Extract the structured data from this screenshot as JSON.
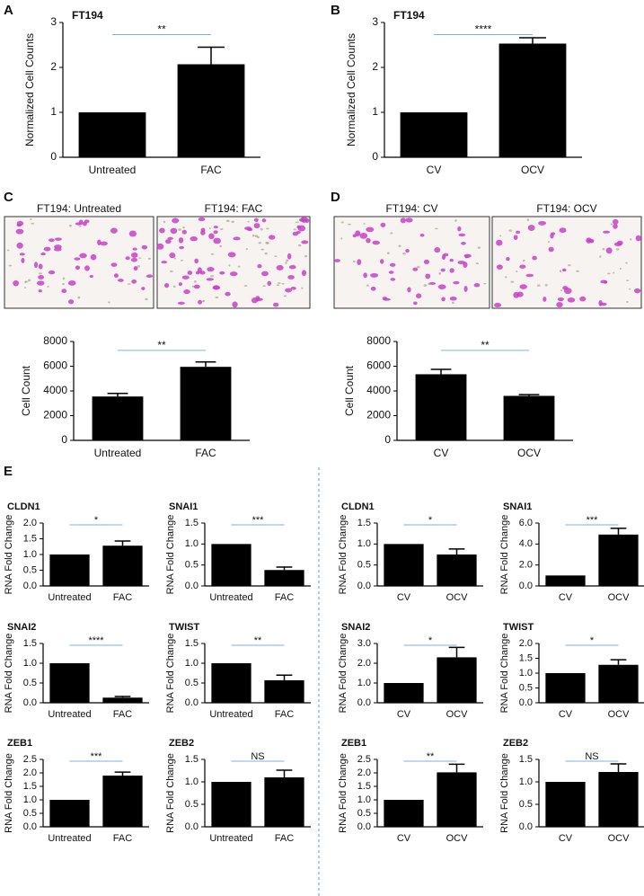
{
  "panel_labels": [
    "A",
    "B",
    "C",
    "D",
    "E"
  ],
  "micrographs": [
    "FT194: Untreated",
    "FT194: FAC",
    "FT194: CV",
    "FT194: OCV"
  ],
  "chart_data": [
    {
      "type": "bar",
      "title": "FT194",
      "ylabel": "Normalized Cell Counts",
      "categories": [
        "Untreated",
        "FAC"
      ],
      "values": [
        1,
        2.07
      ],
      "errors": [
        null,
        0.38
      ],
      "color": "#000000",
      "ylim": [
        0,
        3
      ],
      "yticks": [
        0,
        1,
        2,
        3
      ],
      "significance": "**"
    },
    {
      "type": "bar",
      "title": "FT194",
      "ylabel": "Normalized Cell Counts",
      "categories": [
        "CV",
        "OCV"
      ],
      "values": [
        1,
        2.53
      ],
      "errors": [
        null,
        0.13
      ],
      "color": "#000000",
      "ylim": [
        0,
        3
      ],
      "yticks": [
        0,
        1,
        2,
        3
      ],
      "significance": "****"
    },
    {
      "type": "bar",
      "ylabel": "Cell Count",
      "categories": [
        "Untreated",
        "FAC"
      ],
      "values": [
        3550,
        5950
      ],
      "errors": [
        250,
        400
      ],
      "color": "#000000",
      "ylim": [
        0,
        8000
      ],
      "yticks": [
        0,
        2000,
        4000,
        6000,
        8000
      ],
      "significance": "**"
    },
    {
      "type": "bar",
      "ylabel": "Cell Count",
      "categories": [
        "CV",
        "OCV"
      ],
      "values": [
        5350,
        3600
      ],
      "errors": [
        400,
        100
      ],
      "color": "#000000",
      "ylim": [
        0,
        8000
      ],
      "yticks": [
        0,
        2000,
        4000,
        6000,
        8000
      ],
      "significance": "**"
    },
    {
      "type": "bar",
      "title": "CLDN1",
      "ylabel": "RNA Fold Change",
      "categories": [
        "Untreated",
        "FAC"
      ],
      "values": [
        1,
        1.28
      ],
      "errors": [
        null,
        0.15
      ],
      "color": "#000000",
      "ylim": [
        0,
        2
      ],
      "yticks": [
        {
          "value": 0,
          "label": "0.0"
        },
        {
          "value": 0.5,
          "label": "0.5"
        },
        {
          "value": 1,
          "label": "1.0"
        },
        {
          "value": 1.5,
          "label": "1.5"
        },
        {
          "value": 2,
          "label": "2.0"
        }
      ],
      "significance": "*"
    },
    {
      "type": "bar",
      "title": "SNAI1",
      "ylabel": "RNA Fold Change",
      "categories": [
        "Untreated",
        "FAC"
      ],
      "values": [
        1,
        0.38
      ],
      "errors": [
        null,
        0.07
      ],
      "color": "#000000",
      "ylim": [
        0,
        1.5
      ],
      "yticks": [
        {
          "value": 0,
          "label": "0.0"
        },
        {
          "value": 0.5,
          "label": "0.5"
        },
        {
          "value": 1,
          "label": "1.0"
        },
        {
          "value": 1.5,
          "label": "1.5"
        }
      ],
      "significance": "***"
    },
    {
      "type": "bar",
      "title": "SNAI2",
      "ylabel": "RNA Fold Change",
      "categories": [
        "Untreated",
        "FAC"
      ],
      "values": [
        1,
        0.13
      ],
      "errors": [
        null,
        0.03
      ],
      "color": "#000000",
      "ylim": [
        0,
        1.5
      ],
      "yticks": [
        {
          "value": 0,
          "label": "0.0"
        },
        {
          "value": 0.5,
          "label": "0.5"
        },
        {
          "value": 1,
          "label": "1.0"
        },
        {
          "value": 1.5,
          "label": "1.5"
        }
      ],
      "significance": "****"
    },
    {
      "type": "bar",
      "title": "TWIST",
      "ylabel": "RNA Fold Change",
      "categories": [
        "Untreated",
        "FAC"
      ],
      "values": [
        1,
        0.57
      ],
      "errors": [
        null,
        0.13
      ],
      "color": "#000000",
      "ylim": [
        0,
        1.5
      ],
      "yticks": [
        {
          "value": 0,
          "label": "0.0"
        },
        {
          "value": 0.5,
          "label": "0.5"
        },
        {
          "value": 1,
          "label": "1.0"
        },
        {
          "value": 1.5,
          "label": "1.5"
        }
      ],
      "significance": "**"
    },
    {
      "type": "bar",
      "title": "ZEB1",
      "ylabel": "RNA Fold Change",
      "categories": [
        "Untreated",
        "FAC"
      ],
      "values": [
        1,
        1.9
      ],
      "errors": [
        null,
        0.13
      ],
      "color": "#000000",
      "ylim": [
        0,
        2.5
      ],
      "yticks": [
        {
          "value": 0,
          "label": "0.0"
        },
        {
          "value": 0.5,
          "label": "0.5"
        },
        {
          "value": 1,
          "label": "1.0"
        },
        {
          "value": 1.5,
          "label": "1.5"
        },
        {
          "value": 2,
          "label": "2.0"
        },
        {
          "value": 2.5,
          "label": "2.5"
        }
      ],
      "significance": "***"
    },
    {
      "type": "bar",
      "title": "ZEB2",
      "ylabel": "RNA Fold Change",
      "categories": [
        "Untreated",
        "FAC"
      ],
      "values": [
        1,
        1.1
      ],
      "errors": [
        null,
        0.16
      ],
      "color": "#000000",
      "ylim": [
        0,
        1.5
      ],
      "yticks": [
        {
          "value": 0,
          "label": "0.0"
        },
        {
          "value": 0.5,
          "label": "0.5"
        },
        {
          "value": 1,
          "label": "1.0"
        },
        {
          "value": 1.5,
          "label": "1.5"
        }
      ],
      "significance": "NS"
    },
    {
      "type": "bar",
      "title": "CLDN1",
      "ylabel": "RNA Fold Change",
      "categories": [
        "CV",
        "OCV"
      ],
      "values": [
        1,
        0.75
      ],
      "errors": [
        null,
        0.13
      ],
      "color": "#000000",
      "ylim": [
        0,
        1.5
      ],
      "yticks": [
        {
          "value": 0,
          "label": "0.0"
        },
        {
          "value": 0.5,
          "label": "0.5"
        },
        {
          "value": 1,
          "label": "1.0"
        },
        {
          "value": 1.5,
          "label": "1.5"
        }
      ],
      "significance": "*"
    },
    {
      "type": "bar",
      "title": "SNAI1",
      "ylabel": "RNA Fold Change",
      "categories": [
        "CV",
        "OCV"
      ],
      "values": [
        1,
        4.9
      ],
      "errors": [
        null,
        0.6
      ],
      "color": "#000000",
      "ylim": [
        0,
        6
      ],
      "yticks": [
        {
          "value": 0,
          "label": "0.0"
        },
        {
          "value": 2,
          "label": "2.0"
        },
        {
          "value": 4,
          "label": "4.0"
        },
        {
          "value": 6,
          "label": "6.0"
        }
      ],
      "significance": "***"
    },
    {
      "type": "bar",
      "title": "SNAI2",
      "ylabel": "RNA Fold Change",
      "categories": [
        "CV",
        "OCV"
      ],
      "values": [
        1,
        2.3
      ],
      "errors": [
        null,
        0.5
      ],
      "color": "#000000",
      "ylim": [
        0,
        3
      ],
      "yticks": [
        {
          "value": 0,
          "label": "0.0"
        },
        {
          "value": 1,
          "label": "1.0"
        },
        {
          "value": 2,
          "label": "2.0"
        },
        {
          "value": 3,
          "label": "3.0"
        }
      ],
      "significance": "*"
    },
    {
      "type": "bar",
      "title": "TWIST",
      "ylabel": "RNA Fold Change",
      "categories": [
        "CV",
        "OCV"
      ],
      "values": [
        1,
        1.28
      ],
      "errors": [
        null,
        0.17
      ],
      "color": "#000000",
      "ylim": [
        0,
        2
      ],
      "yticks": [
        {
          "value": 0,
          "label": "0.0"
        },
        {
          "value": 0.5,
          "label": "0.5"
        },
        {
          "value": 1,
          "label": "1.0"
        },
        {
          "value": 1.5,
          "label": "1.5"
        },
        {
          "value": 2,
          "label": "2.0"
        }
      ],
      "significance": "*"
    },
    {
      "type": "bar",
      "title": "ZEB1",
      "ylabel": "RNA Fold Change",
      "categories": [
        "CV",
        "OCV"
      ],
      "values": [
        1,
        2.02
      ],
      "errors": [
        null,
        0.3
      ],
      "color": "#000000",
      "ylim": [
        0,
        2.5
      ],
      "yticks": [
        {
          "value": 0,
          "label": "0.0"
        },
        {
          "value": 0.5,
          "label": "0.5"
        },
        {
          "value": 1,
          "label": "1.0"
        },
        {
          "value": 1.5,
          "label": "1.5"
        },
        {
          "value": 2,
          "label": "2.0"
        },
        {
          "value": 2.5,
          "label": "2.5"
        }
      ],
      "significance": "**"
    },
    {
      "type": "bar",
      "title": "ZEB2",
      "ylabel": "RNA Fold Change",
      "categories": [
        "CV",
        "OCV"
      ],
      "values": [
        1,
        1.22
      ],
      "errors": [
        null,
        0.18
      ],
      "color": "#000000",
      "ylim": [
        0,
        1.5
      ],
      "yticks": [
        {
          "value": 0,
          "label": "0.0"
        },
        {
          "value": 0.5,
          "label": "0.5"
        },
        {
          "value": 1,
          "label": "1.0"
        },
        {
          "value": 1.5,
          "label": "1.5"
        }
      ],
      "significance": "NS"
    }
  ]
}
